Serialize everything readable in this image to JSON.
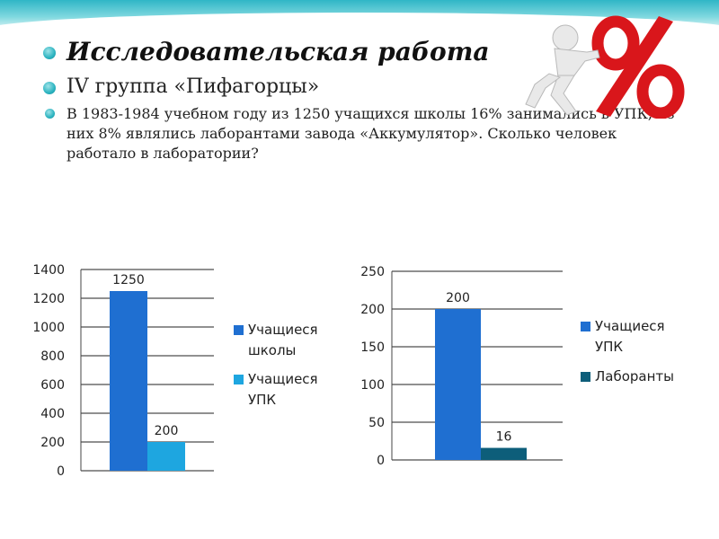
{
  "slide": {
    "title": "Исследовательская работа",
    "subtitle": "IV группа «Пифагорцы»",
    "problem_text": "В 1983-1984 учебном году из 1250 учащихся школы 16% занимались в УПК, из них 8% являлись лаборантами завода «Аккумулятор». Сколько человек работало в лаборатории?"
  },
  "decor": {
    "clipart_icon": "person-pushing-percent-sign",
    "percent_symbol": "%",
    "percent_color": "#d9161b",
    "figure_color": "#e8e8e8",
    "band_color": "#2fb6c6"
  },
  "chart_data": [
    {
      "type": "bar",
      "categories": [
        ""
      ],
      "series": [
        {
          "name": "Учащиеся школы",
          "values": [
            1250
          ],
          "color": "#1f6fd1"
        },
        {
          "name": "Учащиеся УПК",
          "values": [
            200
          ],
          "color": "#1ea6e0"
        }
      ],
      "data_labels": [
        "1250",
        "200"
      ],
      "ylim": [
        0,
        1400
      ],
      "yticks": [
        0,
        200,
        400,
        600,
        800,
        1000,
        1200,
        1400
      ],
      "grid": true,
      "legend": "right"
    },
    {
      "type": "bar",
      "categories": [
        ""
      ],
      "series": [
        {
          "name": "Учащиеся УПК",
          "values": [
            200
          ],
          "color": "#1f6fd1"
        },
        {
          "name": "Лаборанты",
          "values": [
            16
          ],
          "color": "#0d5e7a"
        }
      ],
      "data_labels": [
        "200",
        "16"
      ],
      "ylim": [
        0,
        250
      ],
      "yticks": [
        0,
        50,
        100,
        150,
        200,
        250
      ],
      "grid": true,
      "legend": "right"
    }
  ]
}
